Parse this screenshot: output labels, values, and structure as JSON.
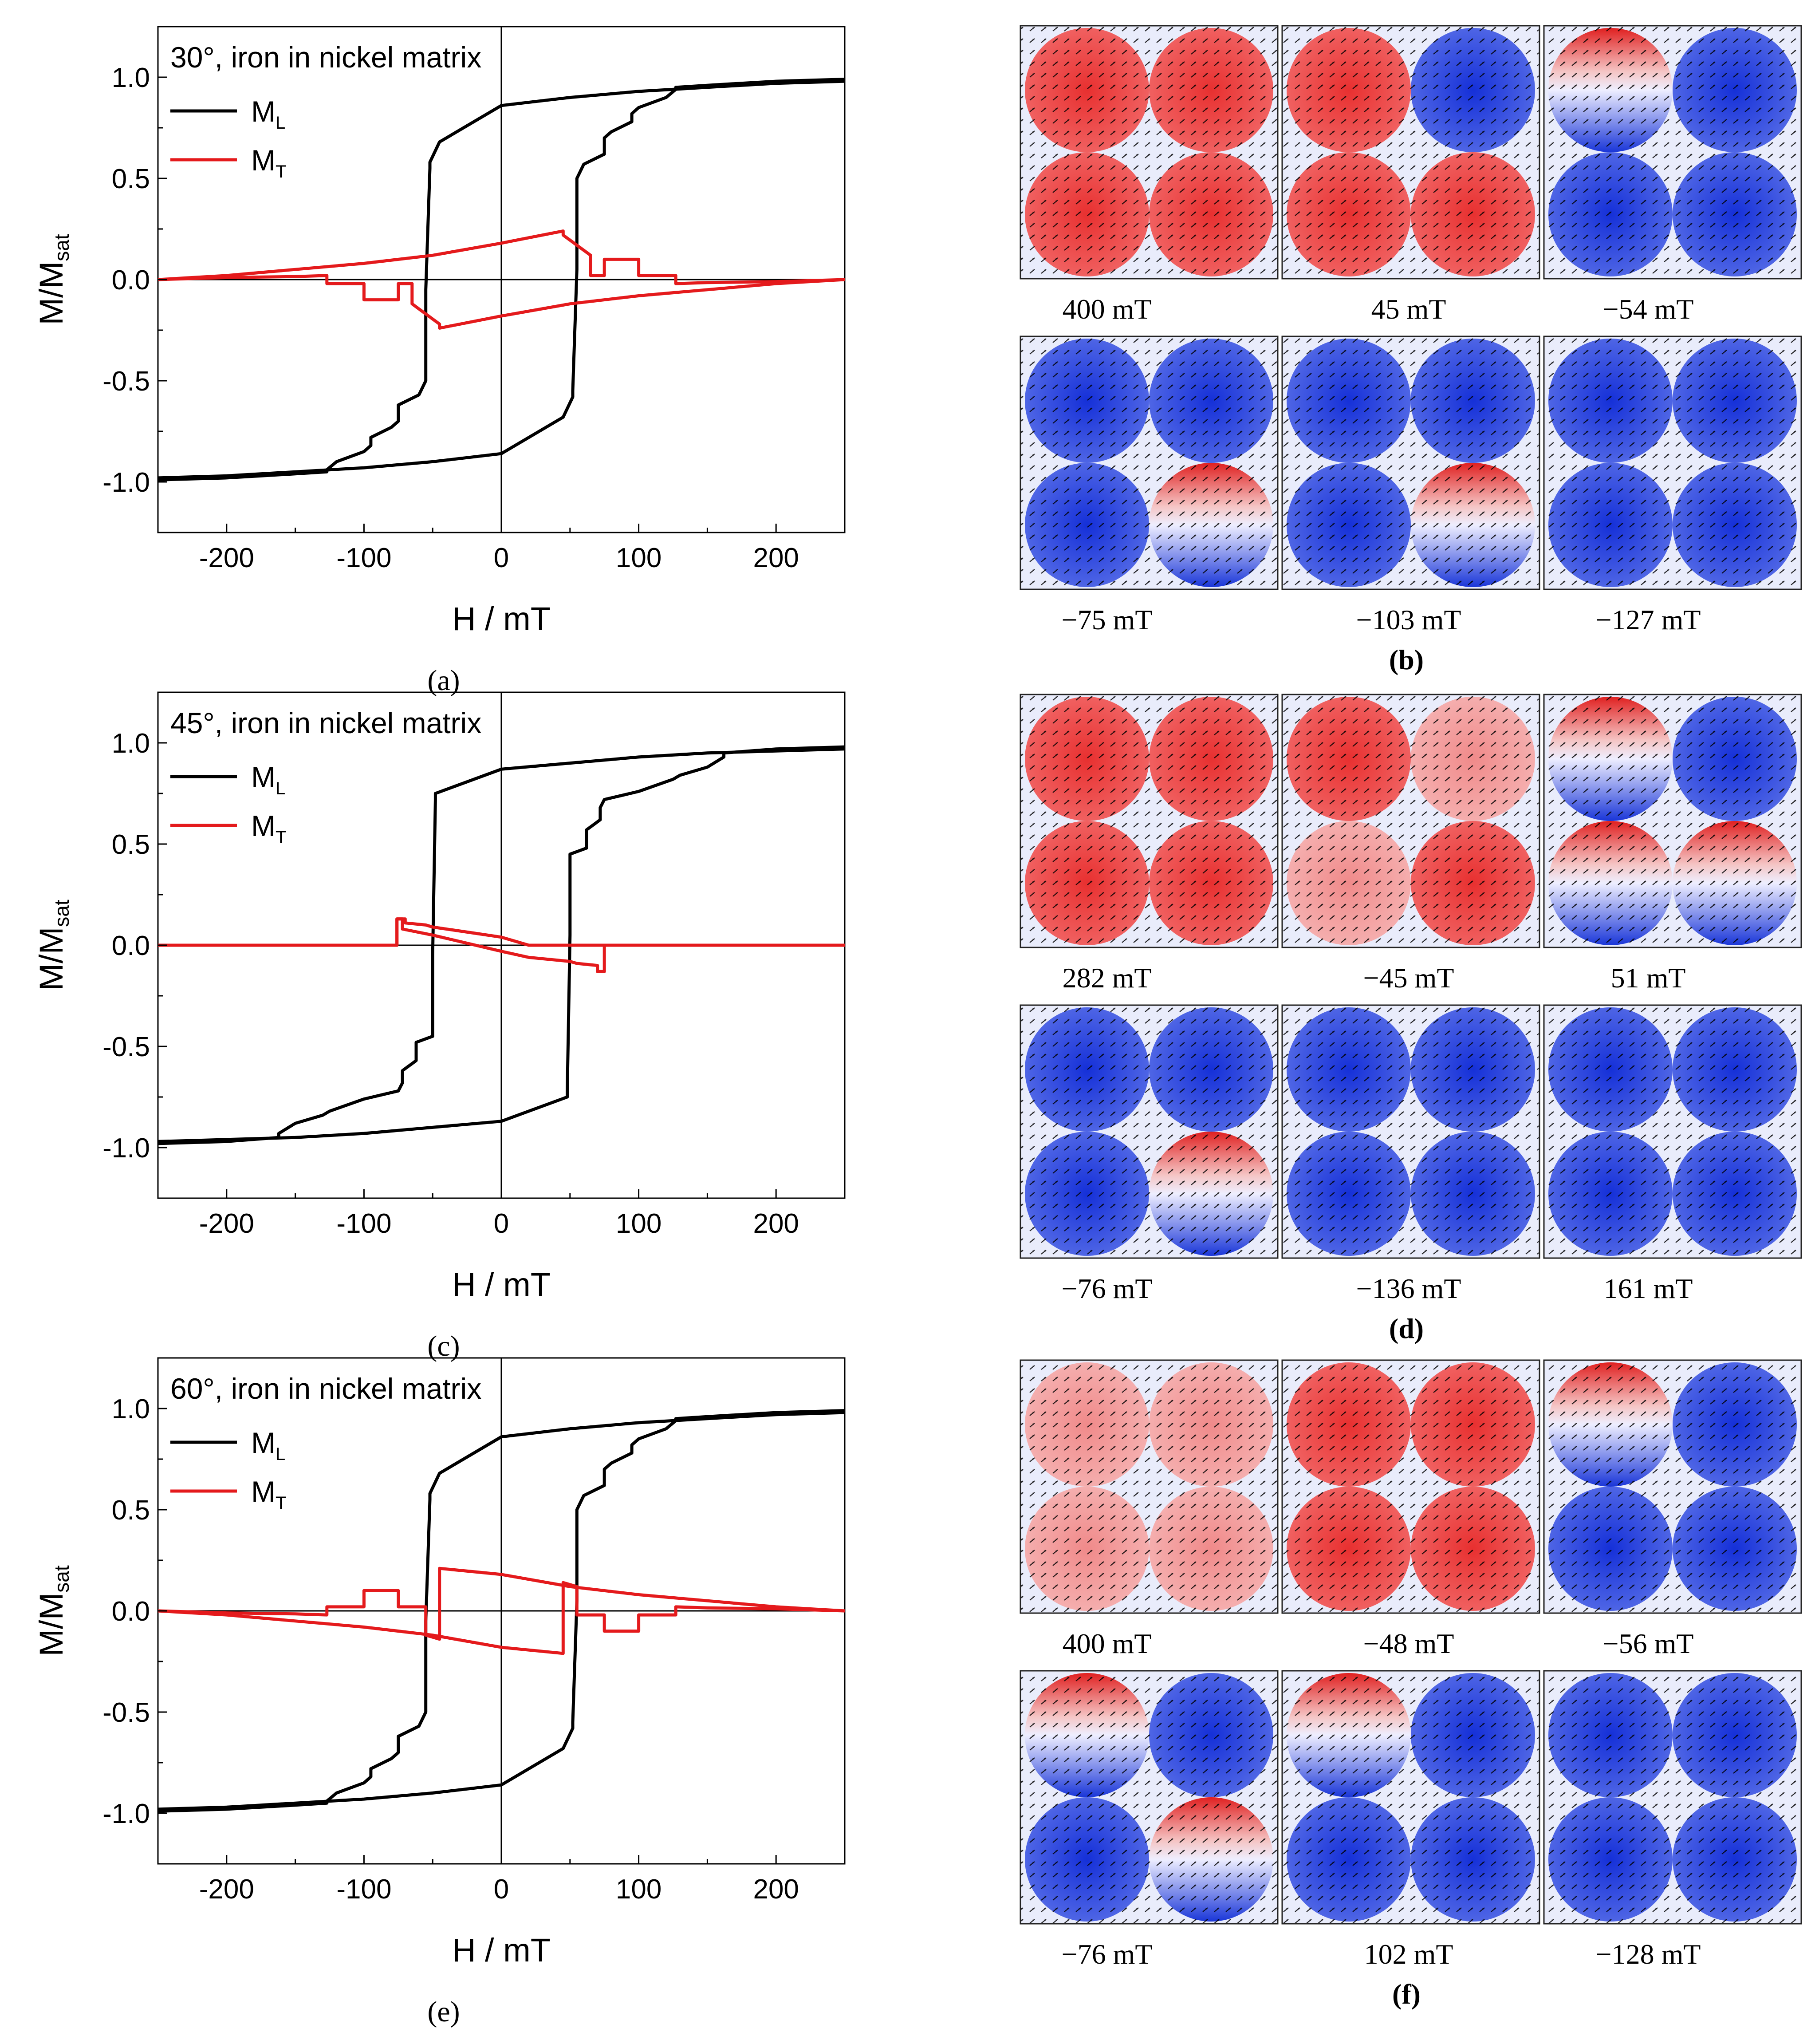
{
  "colors": {
    "m_l": "#000000",
    "m_t": "#e41a1c",
    "positive": "#e0201e",
    "negative": "#1f3fd8"
  },
  "chart_data": [
    {
      "type": "line",
      "panel": "(a)",
      "title": "30°, iron in nickel matrix",
      "xlabel": "H / mT",
      "ylabel": "M/M",
      "ylabel_sub": "sat",
      "xlim": [
        -250,
        250
      ],
      "ylim": [
        -1.25,
        1.25
      ],
      "xticks": [
        -200,
        -100,
        0,
        100,
        200
      ],
      "yticks": [
        -1.0,
        -0.5,
        0.0,
        0.5,
        1.0
      ],
      "xtick_labels": [
        "-200",
        "-100",
        "0",
        "100",
        "200"
      ],
      "ytick_labels": [
        "-1.0",
        "-0.5",
        "0.0",
        "0.5",
        "1.0"
      ],
      "legend": [
        {
          "name": "M",
          "sub": "L"
        },
        {
          "name": "M",
          "sub": "T"
        }
      ],
      "series": [
        {
          "name": "M_L",
          "x": [
            250,
            200,
            150,
            127,
            127,
            120,
            100,
            95,
            95,
            80,
            75,
            75,
            60,
            55,
            55,
            52,
            52,
            45,
            0,
            -50,
            -100,
            -150,
            -200,
            -250
          ],
          "y": [
            0.99,
            0.98,
            0.96,
            0.95,
            0.94,
            0.9,
            0.85,
            0.82,
            0.78,
            0.73,
            0.7,
            0.62,
            0.57,
            0.5,
            0.05,
            -0.55,
            -0.58,
            -0.68,
            -0.86,
            -0.9,
            -0.93,
            -0.95,
            -0.97,
            -0.98
          ]
        },
        {
          "name": "M_L",
          "x": [
            -250,
            -200,
            -150,
            -127,
            -127,
            -120,
            -100,
            -95,
            -95,
            -80,
            -75,
            -75,
            -60,
            -55,
            -55,
            -52,
            -52,
            -45,
            0,
            50,
            100,
            150,
            200,
            250
          ],
          "y": [
            -0.99,
            -0.98,
            -0.96,
            -0.95,
            -0.94,
            -0.9,
            -0.85,
            -0.82,
            -0.78,
            -0.73,
            -0.7,
            -0.62,
            -0.57,
            -0.5,
            -0.05,
            0.55,
            0.58,
            0.68,
            0.86,
            0.9,
            0.93,
            0.95,
            0.97,
            0.98
          ]
        },
        {
          "name": "M_T",
          "x": [
            250,
            200,
            150,
            127,
            127,
            100,
            100,
            75,
            75,
            65,
            65,
            45,
            45,
            0,
            -50,
            -100,
            -150,
            -200,
            -250
          ],
          "y": [
            0.0,
            -0.01,
            -0.015,
            -0.02,
            0.02,
            0.02,
            0.1,
            0.1,
            0.02,
            0.02,
            0.12,
            0.22,
            0.24,
            0.18,
            0.12,
            0.08,
            0.05,
            0.02,
            0.0
          ]
        },
        {
          "name": "M_T",
          "x": [
            -250,
            -200,
            -150,
            -127,
            -127,
            -100,
            -100,
            -75,
            -75,
            -65,
            -65,
            -45,
            -45,
            0,
            50,
            100,
            150,
            200,
            250
          ],
          "y": [
            0.0,
            0.01,
            0.015,
            0.02,
            -0.02,
            -0.02,
            -0.1,
            -0.1,
            -0.02,
            -0.02,
            -0.12,
            -0.22,
            -0.24,
            -0.18,
            -0.12,
            -0.08,
            -0.05,
            -0.02,
            0.0
          ]
        }
      ]
    },
    {
      "type": "line",
      "panel": "(c)",
      "title": "45°, iron in nickel matrix",
      "xlabel": "H / mT",
      "ylabel": "M/M",
      "ylabel_sub": "sat",
      "xlim": [
        -250,
        250
      ],
      "ylim": [
        -1.25,
        1.25
      ],
      "xticks": [
        -200,
        -100,
        0,
        100,
        200
      ],
      "yticks": [
        -1.0,
        -0.5,
        0.0,
        0.5,
        1.0
      ],
      "xtick_labels": [
        "-200",
        "-100",
        "0",
        "100",
        "200"
      ],
      "ytick_labels": [
        "-1.0",
        "-0.5",
        "0.0",
        "0.5",
        "1.0"
      ],
      "legend": [
        {
          "name": "M",
          "sub": "L"
        },
        {
          "name": "M",
          "sub": "T"
        }
      ],
      "series": [
        {
          "name": "M_L",
          "x": [
            250,
            200,
            162,
            162,
            150,
            130,
            125,
            100,
            75,
            72,
            72,
            62,
            62,
            50,
            50,
            48,
            48,
            0,
            -50,
            -100,
            -150,
            -200,
            -250
          ],
          "y": [
            0.98,
            0.97,
            0.95,
            0.93,
            0.88,
            0.84,
            0.82,
            0.76,
            0.72,
            0.68,
            0.62,
            0.57,
            0.48,
            0.45,
            0.05,
            -0.72,
            -0.75,
            -0.87,
            -0.9,
            -0.93,
            -0.95,
            -0.96,
            -0.97
          ]
        },
        {
          "name": "M_L",
          "x": [
            -250,
            -200,
            -162,
            -162,
            -150,
            -130,
            -125,
            -100,
            -75,
            -72,
            -72,
            -62,
            -62,
            -50,
            -50,
            -48,
            -48,
            0,
            50,
            100,
            150,
            200,
            250
          ],
          "y": [
            -0.98,
            -0.97,
            -0.95,
            -0.93,
            -0.88,
            -0.84,
            -0.82,
            -0.76,
            -0.72,
            -0.68,
            -0.62,
            -0.57,
            -0.48,
            -0.45,
            -0.05,
            0.72,
            0.75,
            0.87,
            0.9,
            0.93,
            0.95,
            0.96,
            0.97
          ]
        },
        {
          "name": "M_T",
          "x": [
            250,
            75,
            75,
            70,
            70,
            55,
            50,
            20,
            0,
            -50,
            -72,
            -72,
            -76,
            -76,
            -250
          ],
          "y": [
            0.0,
            0.0,
            -0.13,
            -0.13,
            -0.1,
            -0.09,
            -0.08,
            -0.06,
            -0.03,
            0.05,
            0.08,
            0.13,
            0.13,
            0.0,
            0.0
          ]
        },
        {
          "name": "M_T",
          "x": [
            -250,
            -76,
            -76,
            -70,
            -70,
            -55,
            -50,
            -20,
            0,
            20,
            250
          ],
          "y": [
            0.0,
            0.0,
            0.13,
            0.13,
            0.11,
            0.1,
            0.09,
            0.06,
            0.04,
            0.0,
            0.0
          ]
        }
      ]
    },
    {
      "type": "line",
      "panel": "(e)",
      "title": "60°, iron in nickel matrix",
      "xlabel": "H / mT",
      "ylabel": "M/M",
      "ylabel_sub": "sat",
      "xlim": [
        -250,
        250
      ],
      "ylim": [
        -1.25,
        1.25
      ],
      "xticks": [
        -200,
        -100,
        0,
        100,
        200
      ],
      "yticks": [
        -1.0,
        -0.5,
        0.0,
        0.5,
        1.0
      ],
      "xtick_labels": [
        "-200",
        "-100",
        "0",
        "100",
        "200"
      ],
      "ytick_labels": [
        "-1.0",
        "-0.5",
        "0.0",
        "0.5",
        "1.0"
      ],
      "legend": [
        {
          "name": "M",
          "sub": "L"
        },
        {
          "name": "M",
          "sub": "T"
        }
      ],
      "series": [
        {
          "name": "M_L",
          "x": [
            250,
            200,
            150,
            127,
            127,
            120,
            100,
            95,
            95,
            80,
            75,
            75,
            60,
            55,
            55,
            52,
            52,
            45,
            0,
            -50,
            -100,
            -150,
            -200,
            -250
          ],
          "y": [
            0.99,
            0.98,
            0.96,
            0.95,
            0.94,
            0.9,
            0.85,
            0.82,
            0.78,
            0.73,
            0.7,
            0.62,
            0.57,
            0.5,
            0.05,
            -0.55,
            -0.58,
            -0.68,
            -0.86,
            -0.9,
            -0.93,
            -0.95,
            -0.97,
            -0.98
          ]
        },
        {
          "name": "M_L",
          "x": [
            -250,
            -200,
            -150,
            -127,
            -127,
            -120,
            -100,
            -95,
            -95,
            -80,
            -75,
            -75,
            -60,
            -55,
            -55,
            -52,
            -52,
            -45,
            0,
            50,
            100,
            150,
            200,
            250
          ],
          "y": [
            -0.99,
            -0.98,
            -0.96,
            -0.95,
            -0.94,
            -0.9,
            -0.85,
            -0.82,
            -0.78,
            -0.73,
            -0.7,
            -0.62,
            -0.57,
            -0.5,
            -0.05,
            0.55,
            0.58,
            0.68,
            0.86,
            0.9,
            0.93,
            0.95,
            0.97,
            0.98
          ]
        },
        {
          "name": "M_T",
          "x": [
            250,
            200,
            150,
            127,
            127,
            100,
            100,
            75,
            75,
            55,
            55,
            45,
            45,
            0,
            -50,
            -100,
            -150,
            -200,
            -250
          ],
          "y": [
            0.0,
            0.01,
            0.015,
            0.02,
            -0.02,
            -0.02,
            -0.1,
            -0.1,
            -0.02,
            -0.02,
            0.12,
            0.14,
            -0.21,
            -0.18,
            -0.12,
            -0.08,
            -0.05,
            -0.02,
            0.0
          ]
        },
        {
          "name": "M_T",
          "x": [
            -250,
            -200,
            -150,
            -127,
            -127,
            -100,
            -100,
            -75,
            -75,
            -55,
            -55,
            -45,
            -45,
            0,
            50,
            100,
            150,
            200,
            250
          ],
          "y": [
            0.0,
            -0.01,
            -0.015,
            -0.02,
            0.02,
            0.02,
            0.1,
            0.1,
            0.02,
            0.02,
            -0.12,
            -0.14,
            0.21,
            0.18,
            0.12,
            0.08,
            0.05,
            0.02,
            0.0
          ]
        }
      ]
    }
  ],
  "snapshot_panels": [
    {
      "panel": "(b)",
      "snapshots": [
        {
          "label": "400 mT",
          "disks": [
            "red",
            "red",
            "red",
            "red"
          ]
        },
        {
          "label": "45 mT",
          "disks": [
            "red",
            "blue",
            "red",
            "red"
          ]
        },
        {
          "label": "−54 mT",
          "disks": [
            "mixed",
            "blue",
            "blue",
            "blue"
          ]
        },
        {
          "label": "−75 mT",
          "disks": [
            "blue",
            "blue",
            "blue",
            "mixed"
          ]
        },
        {
          "label": "−103 mT",
          "disks": [
            "blue",
            "blue",
            "blue",
            "mixed"
          ]
        },
        {
          "label": "−127 mT",
          "disks": [
            "blue",
            "blue",
            "blue",
            "blue"
          ]
        }
      ]
    },
    {
      "panel": "(d)",
      "snapshots": [
        {
          "label": "282 mT",
          "disks": [
            "red",
            "red",
            "red",
            "red"
          ]
        },
        {
          "label": "−45 mT",
          "disks": [
            "red",
            "light",
            "light",
            "red"
          ]
        },
        {
          "label": "51 mT",
          "disks": [
            "mixed",
            "blue",
            "mixed",
            "mixed"
          ]
        },
        {
          "label": "−76 mT",
          "disks": [
            "blue",
            "blue",
            "blue",
            "mixed"
          ]
        },
        {
          "label": "−136 mT",
          "disks": [
            "blue",
            "blue",
            "blue",
            "blue"
          ]
        },
        {
          "label": "161 mT",
          "disks": [
            "blue",
            "blue",
            "blue",
            "blue"
          ]
        }
      ]
    },
    {
      "panel": "(f)",
      "snapshots": [
        {
          "label": "400 mT",
          "disks": [
            "light",
            "light",
            "light",
            "light"
          ]
        },
        {
          "label": "−48 mT",
          "disks": [
            "red",
            "red",
            "red",
            "red"
          ]
        },
        {
          "label": "−56 mT",
          "disks": [
            "mixed",
            "blue",
            "blue",
            "blue"
          ]
        },
        {
          "label": "−76    mT",
          "disks": [
            "mixed",
            "blue",
            "blue",
            "mixed"
          ]
        },
        {
          "label": "102 mT",
          "disks": [
            "mixed",
            "blue",
            "blue",
            "blue"
          ]
        },
        {
          "label": "−128 mT",
          "disks": [
            "blue",
            "blue",
            "blue",
            "blue"
          ]
        }
      ]
    }
  ]
}
